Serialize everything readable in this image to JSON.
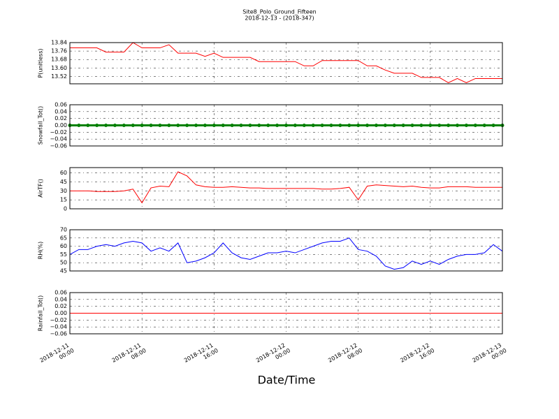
{
  "chart_data": [
    {
      "type": "line",
      "title": "Site8_Polo_Ground_Fifteen",
      "subtitle": "2018-12-13 - (2018-347)",
      "ylabel": "P(unitless)",
      "color": "#ff0000",
      "grid": true,
      "xlim": [
        "2018-12-11 00:00",
        "2018-12-13 00:00"
      ],
      "xticks": [
        "2018-12-11 00:00",
        "2018-12-11 08:00",
        "2018-12-11 16:00",
        "2018-12-12 00:00",
        "2018-12-12 08:00",
        "2018-12-12 16:00",
        "2018-12-13 00:00"
      ],
      "ylim": [
        13.45,
        13.84
      ],
      "yticks": [
        13.52,
        {
          "value": 13.6,
          "label": "13.60"
        },
        13.68,
        13.76,
        13.84
      ],
      "x": [
        "2018-12-11 00:00",
        "2018-12-11 01:00",
        "2018-12-11 02:00",
        "2018-12-11 03:00",
        "2018-12-11 04:00",
        "2018-12-11 05:00",
        "2018-12-11 06:00",
        "2018-12-11 07:00",
        "2018-12-11 08:00",
        "2018-12-11 09:00",
        "2018-12-11 10:00",
        "2018-12-11 11:00",
        "2018-12-11 12:00",
        "2018-12-11 13:00",
        "2018-12-11 14:00",
        "2018-12-11 15:00",
        "2018-12-11 16:00",
        "2018-12-11 17:00",
        "2018-12-11 18:00",
        "2018-12-11 19:00",
        "2018-12-11 20:00",
        "2018-12-11 21:00",
        "2018-12-11 22:00",
        "2018-12-11 23:00",
        "2018-12-12 00:00",
        "2018-12-12 01:00",
        "2018-12-12 02:00",
        "2018-12-12 03:00",
        "2018-12-12 04:00",
        "2018-12-12 05:00",
        "2018-12-12 06:00",
        "2018-12-12 07:00",
        "2018-12-12 08:00",
        "2018-12-12 09:00",
        "2018-12-12 10:00",
        "2018-12-12 11:00",
        "2018-12-12 12:00",
        "2018-12-12 13:00",
        "2018-12-12 14:00",
        "2018-12-12 15:00",
        "2018-12-12 16:00",
        "2018-12-12 17:00",
        "2018-12-12 18:00",
        "2018-12-12 19:00",
        "2018-12-12 20:00",
        "2018-12-12 21:00",
        "2018-12-12 22:00",
        "2018-12-12 23:00",
        "2018-12-13 00:00"
      ],
      "values": [
        13.79,
        13.79,
        13.79,
        13.79,
        13.75,
        13.75,
        13.75,
        13.84,
        13.79,
        13.79,
        13.79,
        13.82,
        13.74,
        13.74,
        13.74,
        13.71,
        13.74,
        13.7,
        13.7,
        13.7,
        13.7,
        13.66,
        13.66,
        13.66,
        13.66,
        13.66,
        13.62,
        13.62,
        13.67,
        13.67,
        13.67,
        13.67,
        13.67,
        13.62,
        13.62,
        13.58,
        13.55,
        13.55,
        13.55,
        13.51,
        13.51,
        13.51,
        13.46,
        13.5,
        13.46,
        13.5,
        13.5,
        13.5,
        13.5
      ]
    },
    {
      "type": "line",
      "ylabel": "Snowfall_Tot()",
      "color": "#008000",
      "marker": true,
      "grid": true,
      "xlim": [
        "2018-12-11 00:00",
        "2018-12-13 00:00"
      ],
      "xticks": [
        "2018-12-11 00:00",
        "2018-12-11 08:00",
        "2018-12-11 16:00",
        "2018-12-12 00:00",
        "2018-12-12 08:00",
        "2018-12-12 16:00",
        "2018-12-13 00:00"
      ],
      "ylim": [
        -0.06,
        0.06
      ],
      "yticks": [
        {
          "value": -0.06,
          "label": "−0.06"
        },
        {
          "value": -0.04,
          "label": "−0.04"
        },
        {
          "value": -0.02,
          "label": "−0.02"
        },
        {
          "value": 0,
          "label": "0.00"
        },
        0.02,
        0.04,
        0.06
      ],
      "x": [
        "2018-12-11 00:00",
        "2018-12-11 01:00",
        "2018-12-11 02:00",
        "2018-12-11 03:00",
        "2018-12-11 04:00",
        "2018-12-11 05:00",
        "2018-12-11 06:00",
        "2018-12-11 07:00",
        "2018-12-11 08:00",
        "2018-12-11 09:00",
        "2018-12-11 10:00",
        "2018-12-11 11:00",
        "2018-12-11 12:00",
        "2018-12-11 13:00",
        "2018-12-11 14:00",
        "2018-12-11 15:00",
        "2018-12-11 16:00",
        "2018-12-11 17:00",
        "2018-12-11 18:00",
        "2018-12-11 19:00",
        "2018-12-11 20:00",
        "2018-12-11 21:00",
        "2018-12-11 22:00",
        "2018-12-11 23:00",
        "2018-12-12 00:00",
        "2018-12-12 01:00",
        "2018-12-12 02:00",
        "2018-12-12 03:00",
        "2018-12-12 04:00",
        "2018-12-12 05:00",
        "2018-12-12 06:00",
        "2018-12-12 07:00",
        "2018-12-12 08:00",
        "2018-12-12 09:00",
        "2018-12-12 10:00",
        "2018-12-12 11:00",
        "2018-12-12 12:00",
        "2018-12-12 13:00",
        "2018-12-12 14:00",
        "2018-12-12 15:00",
        "2018-12-12 16:00",
        "2018-12-12 17:00",
        "2018-12-12 18:00",
        "2018-12-12 19:00",
        "2018-12-12 20:00",
        "2018-12-12 21:00",
        "2018-12-12 22:00",
        "2018-12-12 23:00",
        "2018-12-13 00:00"
      ],
      "values": [
        0,
        0,
        0,
        0,
        0,
        0,
        0,
        0,
        0,
        0,
        0,
        0,
        0,
        0,
        0,
        0,
        0,
        0,
        0,
        0,
        0,
        0,
        0,
        0,
        0,
        0,
        0,
        0,
        0,
        0,
        0,
        0,
        0,
        0,
        0,
        0,
        0,
        0,
        0,
        0,
        0,
        0,
        0,
        0,
        0,
        0,
        0,
        0,
        0
      ]
    },
    {
      "type": "line",
      "ylabel": "AirTF()",
      "color": "#ff0000",
      "grid": true,
      "xlim": [
        "2018-12-11 00:00",
        "2018-12-13 00:00"
      ],
      "xticks": [
        "2018-12-11 00:00",
        "2018-12-11 08:00",
        "2018-12-11 16:00",
        "2018-12-12 00:00",
        "2018-12-12 08:00",
        "2018-12-12 16:00",
        "2018-12-13 00:00"
      ],
      "ylim": [
        0,
        69
      ],
      "yticks": [
        0,
        15,
        30,
        45,
        60
      ],
      "x": [
        "2018-12-11 00:00",
        "2018-12-11 01:00",
        "2018-12-11 02:00",
        "2018-12-11 03:00",
        "2018-12-11 04:00",
        "2018-12-11 05:00",
        "2018-12-11 06:00",
        "2018-12-11 07:00",
        "2018-12-11 08:00",
        "2018-12-11 09:00",
        "2018-12-11 10:00",
        "2018-12-11 11:00",
        "2018-12-11 12:00",
        "2018-12-11 13:00",
        "2018-12-11 14:00",
        "2018-12-11 15:00",
        "2018-12-11 16:00",
        "2018-12-11 17:00",
        "2018-12-11 18:00",
        "2018-12-11 19:00",
        "2018-12-11 20:00",
        "2018-12-11 21:00",
        "2018-12-11 22:00",
        "2018-12-11 23:00",
        "2018-12-12 00:00",
        "2018-12-12 01:00",
        "2018-12-12 02:00",
        "2018-12-12 03:00",
        "2018-12-12 04:00",
        "2018-12-12 05:00",
        "2018-12-12 06:00",
        "2018-12-12 07:00",
        "2018-12-12 08:00",
        "2018-12-12 09:00",
        "2018-12-12 10:00",
        "2018-12-12 11:00",
        "2018-12-12 12:00",
        "2018-12-12 13:00",
        "2018-12-12 14:00",
        "2018-12-12 15:00",
        "2018-12-12 16:00",
        "2018-12-12 17:00",
        "2018-12-12 18:00",
        "2018-12-12 19:00",
        "2018-12-12 20:00",
        "2018-12-12 21:00",
        "2018-12-12 22:00",
        "2018-12-12 23:00",
        "2018-12-13 00:00"
      ],
      "values": [
        30,
        30,
        30,
        29,
        29,
        29,
        30,
        33,
        10,
        35,
        38,
        37,
        62,
        55,
        40,
        37,
        36,
        36,
        37,
        36,
        35,
        35,
        34,
        34,
        34,
        34,
        34,
        34,
        33,
        33,
        34,
        36,
        15,
        38,
        40,
        39,
        38,
        37,
        38,
        36,
        35,
        35,
        37,
        37,
        37,
        36,
        36,
        36,
        36
      ]
    },
    {
      "type": "line",
      "ylabel": "RH(%)",
      "color": "#0000ff",
      "grid": true,
      "xlim": [
        "2018-12-11 00:00",
        "2018-12-13 00:00"
      ],
      "xticks": [
        "2018-12-11 00:00",
        "2018-12-11 08:00",
        "2018-12-11 16:00",
        "2018-12-12 00:00",
        "2018-12-12 08:00",
        "2018-12-12 16:00",
        "2018-12-13 00:00"
      ],
      "ylim": [
        45,
        70
      ],
      "yticks": [
        45,
        50,
        55,
        60,
        65,
        70
      ],
      "x": [
        "2018-12-11 00:00",
        "2018-12-11 01:00",
        "2018-12-11 02:00",
        "2018-12-11 03:00",
        "2018-12-11 04:00",
        "2018-12-11 05:00",
        "2018-12-11 06:00",
        "2018-12-11 07:00",
        "2018-12-11 08:00",
        "2018-12-11 09:00",
        "2018-12-11 10:00",
        "2018-12-11 11:00",
        "2018-12-11 12:00",
        "2018-12-11 13:00",
        "2018-12-11 14:00",
        "2018-12-11 15:00",
        "2018-12-11 16:00",
        "2018-12-11 17:00",
        "2018-12-11 18:00",
        "2018-12-11 19:00",
        "2018-12-11 20:00",
        "2018-12-11 21:00",
        "2018-12-11 22:00",
        "2018-12-11 23:00",
        "2018-12-12 00:00",
        "2018-12-12 01:00",
        "2018-12-12 02:00",
        "2018-12-12 03:00",
        "2018-12-12 04:00",
        "2018-12-12 05:00",
        "2018-12-12 06:00",
        "2018-12-12 07:00",
        "2018-12-12 08:00",
        "2018-12-12 09:00",
        "2018-12-12 10:00",
        "2018-12-12 11:00",
        "2018-12-12 12:00",
        "2018-12-12 13:00",
        "2018-12-12 14:00",
        "2018-12-12 15:00",
        "2018-12-12 16:00",
        "2018-12-12 17:00",
        "2018-12-12 18:00",
        "2018-12-12 19:00",
        "2018-12-12 20:00",
        "2018-12-12 21:00",
        "2018-12-12 22:00",
        "2018-12-12 23:00",
        "2018-12-13 00:00"
      ],
      "values": [
        55,
        58,
        58,
        60,
        61,
        60,
        62,
        63,
        62,
        57,
        59,
        57,
        62,
        50,
        51,
        53,
        56,
        62,
        56,
        53,
        52,
        54,
        56,
        56,
        57,
        56,
        58,
        60,
        62,
        63,
        63,
        65,
        58,
        57,
        54,
        48,
        46,
        47,
        51,
        49,
        51,
        49,
        52,
        54,
        55,
        55,
        56,
        61,
        57
      ]
    },
    {
      "type": "line",
      "ylabel": "Rainfall_Tot()",
      "xlabel": "Date/Time",
      "color": "#ff0000",
      "grid": true,
      "xlim": [
        "2018-12-11 00:00",
        "2018-12-13 00:00"
      ],
      "xticks": [
        "2018-12-11 00:00",
        "2018-12-11 08:00",
        "2018-12-11 16:00",
        "2018-12-12 00:00",
        "2018-12-12 08:00",
        "2018-12-12 16:00",
        "2018-12-13 00:00"
      ],
      "ylim": [
        -0.06,
        0.06
      ],
      "yticks": [
        {
          "value": -0.06,
          "label": "−0.06"
        },
        {
          "value": -0.04,
          "label": "−0.04"
        },
        {
          "value": -0.02,
          "label": "−0.02"
        },
        {
          "value": 0,
          "label": "0.00"
        },
        0.02,
        0.04,
        0.06
      ],
      "x": [
        "2018-12-11 00:00",
        "2018-12-11 01:00",
        "2018-12-11 02:00",
        "2018-12-11 03:00",
        "2018-12-11 04:00",
        "2018-12-11 05:00",
        "2018-12-11 06:00",
        "2018-12-11 07:00",
        "2018-12-11 08:00",
        "2018-12-11 09:00",
        "2018-12-11 10:00",
        "2018-12-11 11:00",
        "2018-12-11 12:00",
        "2018-12-11 13:00",
        "2018-12-11 14:00",
        "2018-12-11 15:00",
        "2018-12-11 16:00",
        "2018-12-11 17:00",
        "2018-12-11 18:00",
        "2018-12-11 19:00",
        "2018-12-11 20:00",
        "2018-12-11 21:00",
        "2018-12-11 22:00",
        "2018-12-11 23:00",
        "2018-12-12 00:00",
        "2018-12-12 01:00",
        "2018-12-12 02:00",
        "2018-12-12 03:00",
        "2018-12-12 04:00",
        "2018-12-12 05:00",
        "2018-12-12 06:00",
        "2018-12-12 07:00",
        "2018-12-12 08:00",
        "2018-12-12 09:00",
        "2018-12-12 10:00",
        "2018-12-12 11:00",
        "2018-12-12 12:00",
        "2018-12-12 13:00",
        "2018-12-12 14:00",
        "2018-12-12 15:00",
        "2018-12-12 16:00",
        "2018-12-12 17:00",
        "2018-12-12 18:00",
        "2018-12-12 19:00",
        "2018-12-12 20:00",
        "2018-12-12 21:00",
        "2018-12-12 22:00",
        "2018-12-12 23:00",
        "2018-12-13 00:00"
      ],
      "values": [
        0,
        0,
        0,
        0,
        0,
        0,
        0,
        0,
        0,
        0,
        0,
        0,
        0,
        0,
        0,
        0,
        0,
        0,
        0,
        0,
        0,
        0,
        0,
        0,
        0,
        0,
        0,
        0,
        0,
        0,
        0,
        0,
        0,
        0,
        0,
        0,
        0,
        0,
        0,
        0,
        0,
        0,
        0,
        0,
        0,
        0,
        0,
        0,
        0
      ]
    }
  ]
}
